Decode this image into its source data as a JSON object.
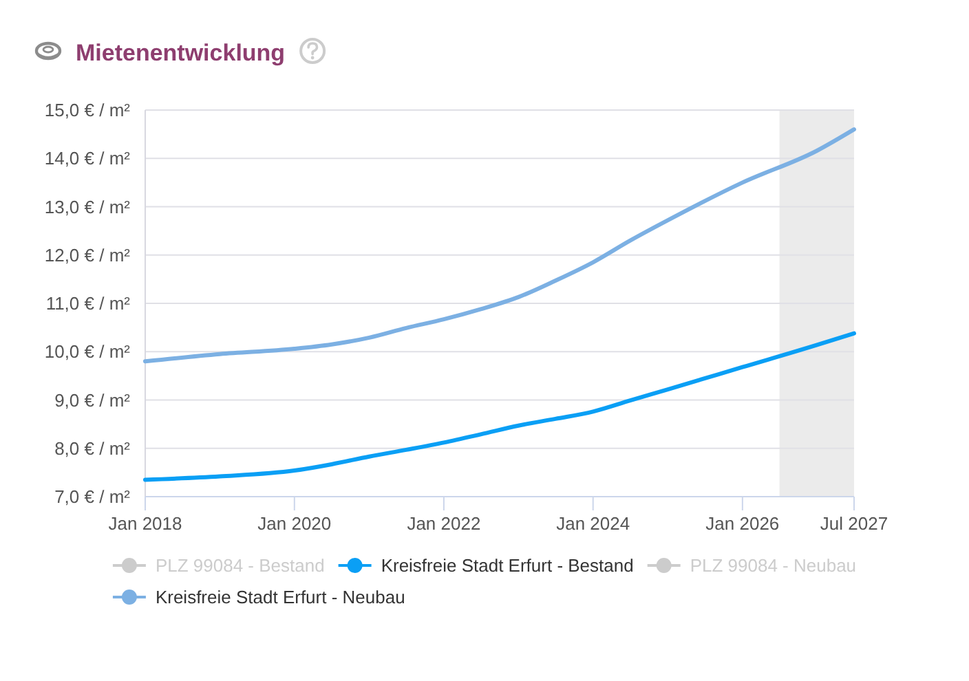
{
  "chart_data": {
    "type": "line",
    "title": "Mietenentwicklung",
    "xlim": [
      "2018-01",
      "2027-07"
    ],
    "xticks": [
      {
        "value": "2018-01",
        "label": "Jan 2018"
      },
      {
        "value": "2020-01",
        "label": "Jan 2020"
      },
      {
        "value": "2022-01",
        "label": "Jan 2022"
      },
      {
        "value": "2024-01",
        "label": "Jan 2024"
      },
      {
        "value": "2026-01",
        "label": "Jan 2026"
      },
      {
        "value": "2027-07",
        "label": "Jul 2027"
      }
    ],
    "ylim": [
      7,
      15
    ],
    "yticks": [
      {
        "value": 7,
        "label": "7,0 € / m²"
      },
      {
        "value": 8,
        "label": "8,0 € / m²"
      },
      {
        "value": 9,
        "label": "9,0 € / m²"
      },
      {
        "value": 10,
        "label": "10,0 € / m²"
      },
      {
        "value": 11,
        "label": "11,0 € / m²"
      },
      {
        "value": 12,
        "label": "12,0 € / m²"
      },
      {
        "value": 13,
        "label": "13,0 € / m²"
      },
      {
        "value": 14,
        "label": "14,0 € / m²"
      },
      {
        "value": 15,
        "label": "15,0 € / m²"
      }
    ],
    "x": [
      "2018-01",
      "2019-01",
      "2020-01",
      "2020-07",
      "2021-01",
      "2021-07",
      "2022-01",
      "2022-07",
      "2023-01",
      "2023-07",
      "2024-01",
      "2024-07",
      "2025-01",
      "2026-01",
      "2027-01",
      "2027-07"
    ],
    "series": [
      {
        "name": "PLZ 99084 - Bestand",
        "color": "#cccccc",
        "values": [
          null,
          null,
          null,
          null,
          null,
          null,
          null,
          null,
          null,
          null,
          null,
          null,
          null,
          null,
          null,
          null
        ]
      },
      {
        "name": "Kreisfreie Stadt Erfurt - Bestand",
        "color": "#0a9ff5",
        "values": [
          7.35,
          7.42,
          7.54,
          7.67,
          7.83,
          7.97,
          8.12,
          8.29,
          8.47,
          8.61,
          8.76,
          8.99,
          9.22,
          9.68,
          10.14,
          10.38
        ]
      },
      {
        "name": "PLZ 99084 - Neubau",
        "color": "#cccccc",
        "values": [
          null,
          null,
          null,
          null,
          null,
          null,
          null,
          null,
          null,
          null,
          null,
          null,
          null,
          null,
          null,
          null
        ]
      },
      {
        "name": "Kreisfreie Stadt Erfurt - Neubau",
        "color": "#7cb0e3",
        "values": [
          9.8,
          9.95,
          10.06,
          10.15,
          10.29,
          10.49,
          10.67,
          10.88,
          11.13,
          11.47,
          11.85,
          12.3,
          12.72,
          13.5,
          14.16,
          14.6
        ]
      }
    ],
    "bands": [
      {
        "axis": "x",
        "from": "2026-07",
        "to": "2027-07",
        "color": "#ebebeb"
      }
    ],
    "grid": "y",
    "legend": "bottom",
    "line_style": "solid"
  }
}
